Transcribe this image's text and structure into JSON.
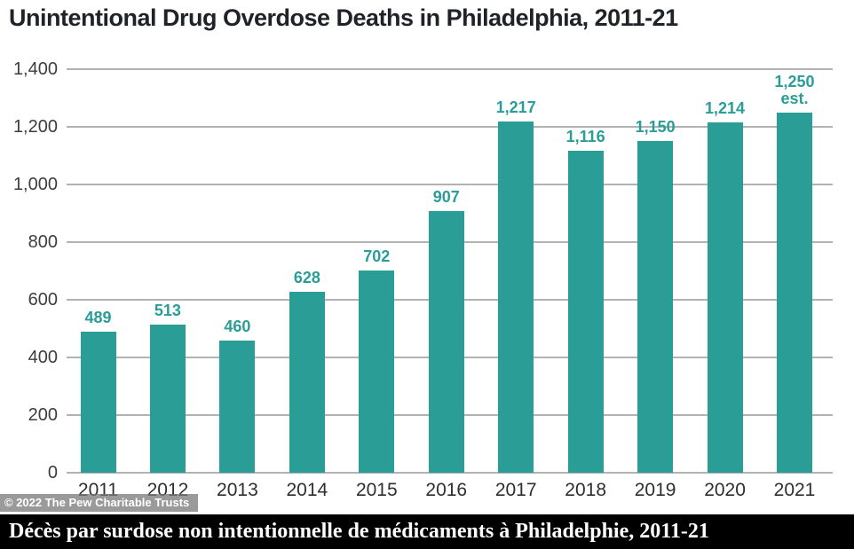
{
  "title": "Unintentional Drug Overdose Deaths in Philadelphia, 2011-21",
  "chart_data": {
    "type": "bar",
    "title": "Unintentional Drug Overdose Deaths in Philadelphia, 2011-21",
    "categories": [
      "2011",
      "2012",
      "2013",
      "2014",
      "2015",
      "2016",
      "2017",
      "2018",
      "2019",
      "2020",
      "2021"
    ],
    "values": [
      489,
      513,
      460,
      628,
      702,
      907,
      1217,
      1116,
      1150,
      1214,
      1250
    ],
    "value_labels": [
      "489",
      "513",
      "460",
      "628",
      "702",
      "907",
      "1,217",
      "1,116",
      "1,150",
      "1,214",
      "1,250"
    ],
    "value_label_suffixes": [
      "",
      "",
      "",
      "",
      "",
      "",
      "",
      "",
      "",
      "",
      "est."
    ],
    "xlabel": "",
    "ylabel": "",
    "ylim": [
      0,
      1400
    ],
    "ytick_interval": 200,
    "ytick_labels": [
      "0",
      "200",
      "400",
      "600",
      "800",
      "1,000",
      "1,200",
      "1,400"
    ],
    "grid": true,
    "legend": false,
    "bar_color": "#2a9d97",
    "gridline_color": "#b2b2b2",
    "value_label_color": "#2a9d97"
  },
  "footer": {
    "credit": "© 2022 The Pew Charitable Trusts"
  },
  "caption": {
    "text": "Décès par surdose non intentionnelle de médicaments à Philadelphie, 2011-21"
  }
}
